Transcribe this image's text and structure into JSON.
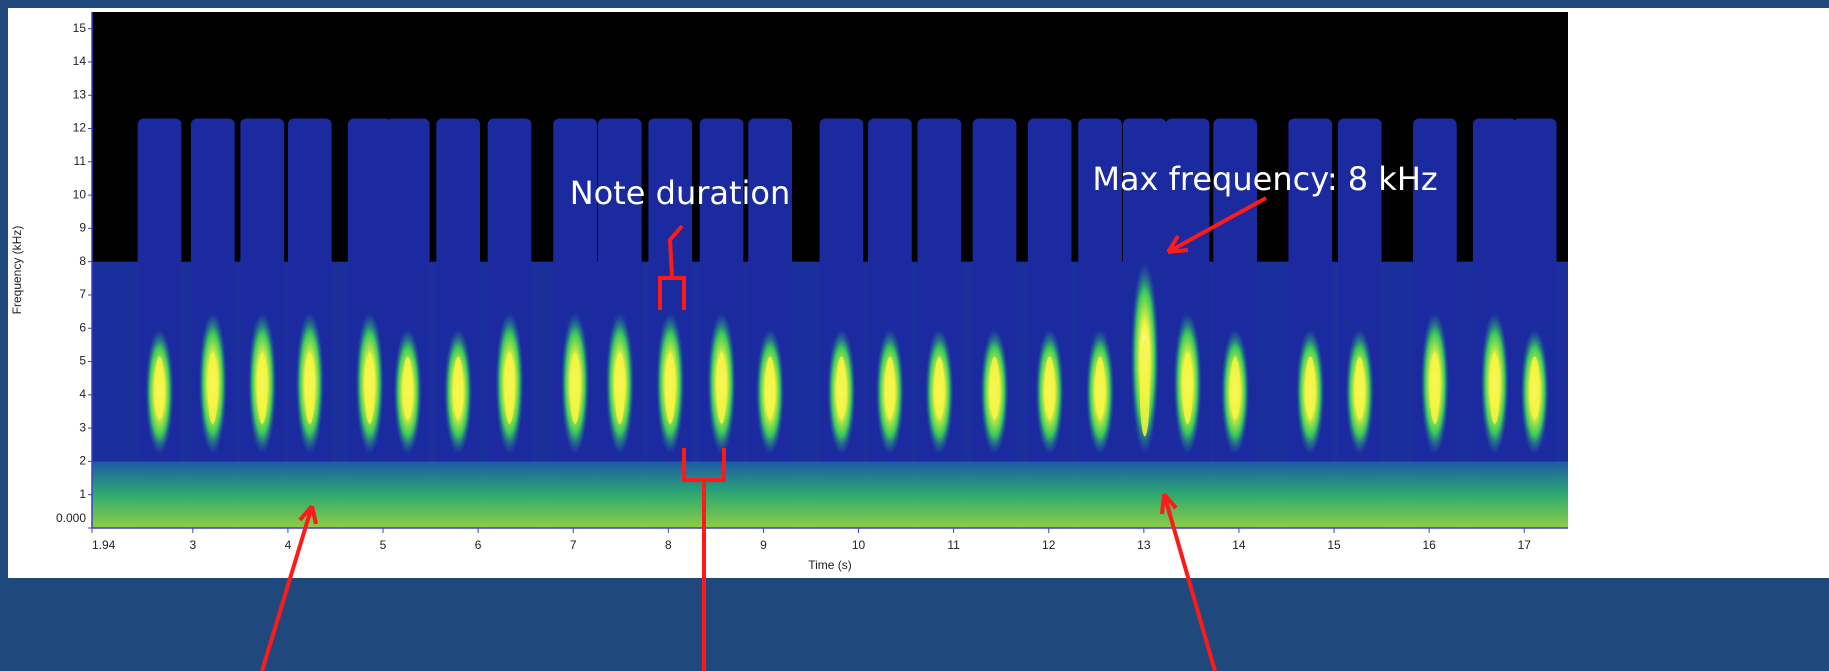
{
  "chart_data": {
    "type": "spectrogram",
    "x_label": "Time (s)",
    "y_label": "Frequency (kHz)",
    "annotations": [
      "Note duration",
      "Max frequency: 8 kHz"
    ],
    "xlim": [
      1.94,
      17.46
    ],
    "ylim": [
      0,
      15.5
    ],
    "xticks": [
      {
        "value": 1.94,
        "label": "1.94"
      },
      3,
      4,
      5,
      6,
      7,
      8,
      9,
      10,
      11,
      12,
      13,
      14,
      15,
      16,
      17
    ],
    "yticks": [
      {
        "value": 0,
        "label": "0.000"
      },
      1,
      2,
      3,
      4,
      5,
      6,
      7,
      8,
      9,
      10,
      11,
      12,
      13,
      14,
      15
    ],
    "x": [
      2.65,
      3.21,
      3.73,
      4.23,
      4.86,
      5.26,
      5.79,
      6.33,
      7.02,
      7.49,
      8.02,
      8.56,
      9.07,
      9.82,
      10.33,
      10.85,
      11.43,
      12.01,
      12.54,
      13.01,
      13.46,
      13.96,
      14.75,
      15.27,
      16.06,
      16.69,
      17.11
    ],
    "values": [
      6,
      6.5,
      6.5,
      6.5,
      6.5,
      6,
      6,
      6.5,
      6.5,
      6.5,
      6.5,
      6.5,
      6,
      6,
      6,
      6,
      6,
      6,
      6,
      8,
      6.5,
      6,
      6,
      6,
      6.5,
      6.5,
      6
    ],
    "color": "#f5f542"
  }
}
